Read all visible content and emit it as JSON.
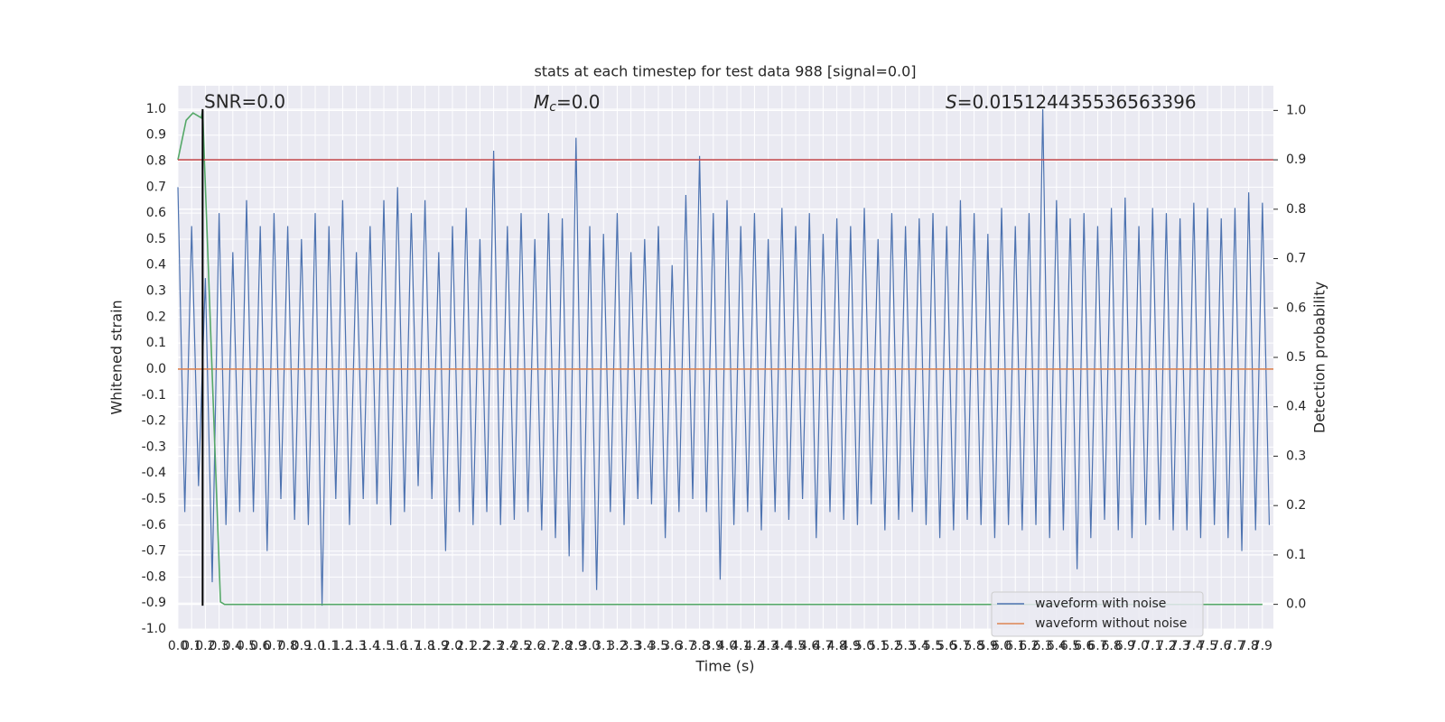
{
  "chart_data": {
    "type": "line",
    "title": "stats at each timestep for test data 988 [signal=0.0]",
    "xlabel": "Time (s)",
    "ylabel": "Whitened strain",
    "y2label": "Detection probability",
    "annotations": [
      {
        "text": "SNR=0.0"
      },
      {
        "symbol": "M",
        "subscript": "c",
        "text": "=0.0"
      },
      {
        "symbol": "S",
        "text": "=0.015124435536563396"
      }
    ],
    "xlim": [
      0,
      7.98
    ],
    "ylim": [
      -1.0,
      1.09
    ],
    "y2lim": [
      -0.05,
      1.05
    ],
    "grid": true,
    "legend": "lower right",
    "xticks": [
      {
        "value": 0,
        "label": "0.0"
      },
      0.1,
      0.2,
      0.3,
      0.4,
      0.5,
      0.6,
      0.7,
      0.8,
      0.9,
      {
        "value": 1,
        "label": "1.0"
      },
      1.1,
      1.2,
      1.3,
      1.4,
      1.5,
      1.6,
      1.7,
      1.8,
      1.9,
      {
        "value": 2,
        "label": "2.0"
      },
      2.1,
      2.2,
      2.3,
      2.4,
      2.5,
      2.6,
      2.7,
      2.8,
      2.9,
      {
        "value": 3,
        "label": "3.0"
      },
      3.1,
      3.2,
      3.3,
      3.4,
      3.5,
      3.6,
      3.7,
      3.8,
      3.9,
      {
        "value": 4,
        "label": "4.0"
      },
      4.1,
      4.2,
      4.3,
      4.4,
      4.5,
      4.6,
      4.7,
      4.8,
      4.9,
      {
        "value": 5,
        "label": "5.0"
      },
      5.1,
      5.2,
      5.3,
      5.4,
      5.5,
      5.6,
      5.7,
      5.8,
      5.9,
      {
        "value": 6,
        "label": "6.0"
      },
      6.1,
      6.2,
      6.3,
      6.4,
      6.5,
      6.6,
      6.7,
      6.8,
      6.9,
      {
        "value": 7,
        "label": "7.0"
      },
      7.1,
      7.2,
      7.3,
      7.4,
      7.5,
      7.6,
      7.7,
      7.8,
      7.9
    ],
    "yticks": [
      {
        "value": -1,
        "label": "-1.0"
      },
      -0.9,
      -0.8,
      -0.7,
      -0.6,
      -0.5,
      -0.4,
      -0.3,
      -0.2,
      -0.1,
      {
        "value": 0,
        "label": "0.0"
      },
      0.1,
      0.2,
      0.3,
      0.4,
      0.5,
      0.6,
      0.7,
      0.8,
      0.9,
      {
        "value": 1,
        "label": "1.0"
      }
    ],
    "y2ticks": [
      {
        "value": 0,
        "label": "0.0"
      },
      0.1,
      0.2,
      0.3,
      0.4,
      0.5,
      0.6,
      0.7,
      0.8,
      0.9,
      {
        "value": 1,
        "label": "1.0"
      }
    ],
    "threshold": {
      "value": 0.9,
      "axis": "y2",
      "color": "#c44e52"
    },
    "event_marker": {
      "x": 0.18,
      "ylim": [
        -0.91,
        1.0
      ],
      "color": "#000000"
    },
    "series": [
      {
        "name": "waveform with noise",
        "color": "#4c72b0",
        "x": [
          0,
          0.05,
          0.1,
          0.15,
          0.2,
          0.25,
          0.3,
          0.35,
          0.4,
          0.45,
          0.5,
          0.55,
          0.6,
          0.65,
          0.7,
          0.75,
          0.8,
          0.85,
          0.9,
          0.95,
          1,
          1.05,
          1.1,
          1.15,
          1.2,
          1.25,
          1.3,
          1.35,
          1.4,
          1.45,
          1.5,
          1.55,
          1.6,
          1.65,
          1.7,
          1.75,
          1.8,
          1.85,
          1.9,
          1.95,
          2,
          2.05,
          2.1,
          2.15,
          2.2,
          2.25,
          2.3,
          2.35,
          2.4,
          2.45,
          2.5,
          2.55,
          2.6,
          2.65,
          2.7,
          2.75,
          2.8,
          2.85,
          2.9,
          2.95,
          3,
          3.05,
          3.1,
          3.15,
          3.2,
          3.25,
          3.3,
          3.35,
          3.4,
          3.45,
          3.5,
          3.55,
          3.6,
          3.65,
          3.7,
          3.75,
          3.8,
          3.85,
          3.9,
          3.95,
          4,
          4.05,
          4.1,
          4.15,
          4.2,
          4.25,
          4.3,
          4.35,
          4.4,
          4.45,
          4.5,
          4.55,
          4.6,
          4.65,
          4.7,
          4.75,
          4.8,
          4.85,
          4.9,
          4.95,
          5,
          5.05,
          5.1,
          5.15,
          5.2,
          5.25,
          5.3,
          5.35,
          5.4,
          5.45,
          5.5,
          5.55,
          5.6,
          5.65,
          5.7,
          5.75,
          5.8,
          5.85,
          5.9,
          5.95,
          6,
          6.05,
          6.1,
          6.15,
          6.2,
          6.25,
          6.3,
          6.35,
          6.4,
          6.45,
          6.5,
          6.55,
          6.6,
          6.65,
          6.7,
          6.75,
          6.8,
          6.85,
          6.9,
          6.95,
          7,
          7.05,
          7.1,
          7.15,
          7.2,
          7.25,
          7.3,
          7.35,
          7.4,
          7.45,
          7.5,
          7.55,
          7.6,
          7.65,
          7.7,
          7.75,
          7.8,
          7.85,
          7.9,
          7.95
        ],
        "values": [
          0.7,
          -0.55,
          0.55,
          -0.45,
          0.35,
          -0.82,
          0.6,
          -0.6,
          0.45,
          -0.55,
          0.65,
          -0.55,
          0.55,
          -0.7,
          0.6,
          -0.5,
          0.55,
          -0.58,
          0.5,
          -0.6,
          0.6,
          -0.91,
          0.55,
          -0.5,
          0.65,
          -0.6,
          0.45,
          -0.5,
          0.55,
          -0.52,
          0.65,
          -0.6,
          0.7,
          -0.55,
          0.6,
          -0.45,
          0.65,
          -0.5,
          0.45,
          -0.7,
          0.55,
          -0.55,
          0.62,
          -0.6,
          0.5,
          -0.55,
          0.84,
          -0.6,
          0.55,
          -0.58,
          0.6,
          -0.55,
          0.5,
          -0.62,
          0.6,
          -0.65,
          0.58,
          -0.72,
          0.89,
          -0.78,
          0.55,
          -0.85,
          0.52,
          -0.55,
          0.6,
          -0.6,
          0.45,
          -0.5,
          0.5,
          -0.52,
          0.55,
          -0.65,
          0.4,
          -0.55,
          0.67,
          -0.5,
          0.82,
          -0.55,
          0.6,
          -0.81,
          0.65,
          -0.6,
          0.55,
          -0.55,
          0.6,
          -0.62,
          0.5,
          -0.55,
          0.62,
          -0.58,
          0.55,
          -0.5,
          0.6,
          -0.65,
          0.52,
          -0.55,
          0.58,
          -0.58,
          0.55,
          -0.6,
          0.62,
          -0.52,
          0.5,
          -0.62,
          0.6,
          -0.58,
          0.55,
          -0.55,
          0.58,
          -0.6,
          0.6,
          -0.65,
          0.55,
          -0.62,
          0.65,
          -0.58,
          0.6,
          -0.6,
          0.52,
          -0.65,
          0.62,
          -0.6,
          0.55,
          -0.62,
          0.6,
          -0.6,
          1.0,
          -0.65,
          0.65,
          -0.62,
          0.58,
          -0.77,
          0.6,
          -0.65,
          0.55,
          -0.58,
          0.62,
          -0.62,
          0.66,
          -0.65,
          0.55,
          -0.6,
          0.62,
          -0.58,
          0.6,
          -0.62,
          0.58,
          -0.62,
          0.64,
          -0.65,
          0.62,
          -0.6,
          0.58,
          -0.65,
          0.62,
          -0.7,
          0.68,
          -0.62,
          0.64,
          -0.6
        ]
      },
      {
        "name": "waveform without noise",
        "color": "#dd8452",
        "x": [
          0,
          7.98
        ],
        "values": [
          0.0,
          0.0
        ]
      },
      {
        "color": "#55a868",
        "axis": "y2",
        "x": [
          0.0,
          0.06,
          0.11,
          0.17,
          0.18,
          0.31,
          0.34,
          7.9
        ],
        "values": [
          0.9,
          0.98,
          0.995,
          0.985,
          1.0,
          0.005,
          0.0,
          0.0
        ]
      }
    ]
  }
}
